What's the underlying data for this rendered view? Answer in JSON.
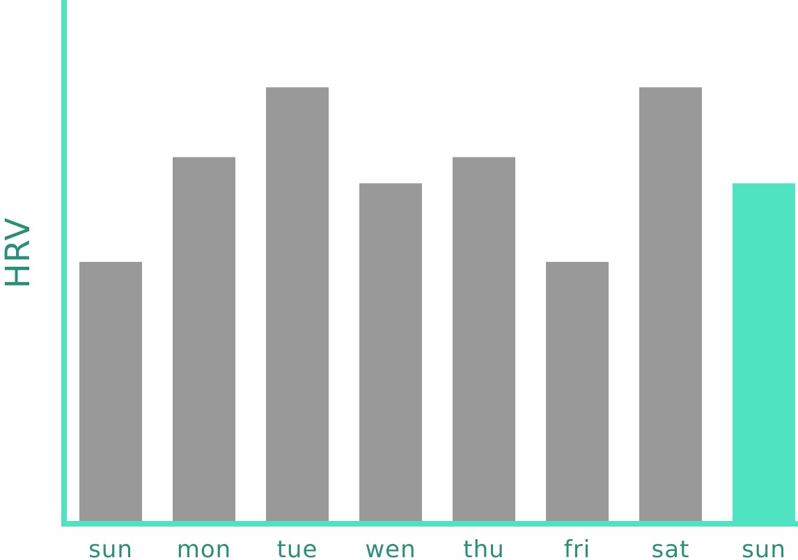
{
  "chart_data": {
    "type": "bar",
    "title": "",
    "xlabel": "",
    "ylabel": "HRV",
    "categories": [
      "sun",
      "mon",
      "tue",
      "wen",
      "thu",
      "fri",
      "sat",
      "sun"
    ],
    "values": [
      3,
      4.2,
      5,
      3.9,
      4.2,
      3,
      5,
      3.9
    ],
    "highlight_index": 7,
    "ylim": [
      0,
      6
    ],
    "grid": false,
    "legend": "none",
    "colors": {
      "axis": "#50E3C2",
      "bar": "#999999",
      "highlight_bar": "#50E3C2",
      "text": "#2A8F78"
    }
  }
}
